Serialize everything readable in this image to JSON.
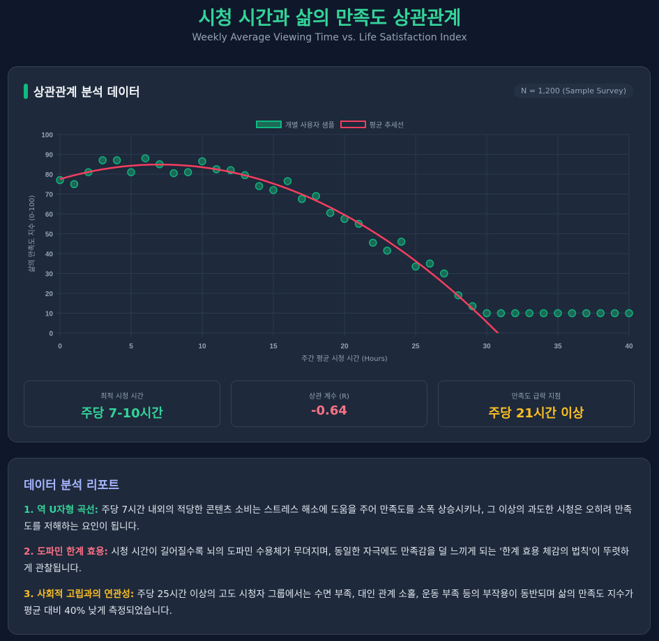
{
  "header": {
    "title": "시청 시간과 삶의 만족도 상관관계",
    "subtitle": "Weekly Average Viewing Time vs. Life Satisfaction Index"
  },
  "chart_card": {
    "title": "상관관계 분석 데이터",
    "sample_badge": "N = 1,200 (Sample Survey)"
  },
  "chart_data": {
    "type": "scatter",
    "title": "상관관계 분석 데이터",
    "xlabel": "주간 평균 시청 시간 (Hours)",
    "ylabel": "삶의 만족도 지수 (0-100)",
    "xlim": [
      0,
      40
    ],
    "ylim": [
      0,
      100
    ],
    "x_ticks": [
      0,
      5,
      10,
      15,
      20,
      25,
      30,
      35,
      40
    ],
    "y_ticks": [
      0,
      10,
      20,
      30,
      40,
      50,
      60,
      70,
      80,
      90,
      100
    ],
    "grid": true,
    "legend_position": "top",
    "legend": [
      "개별 사용자 샘플",
      "평균 추세선"
    ],
    "series": [
      {
        "name": "개별 사용자 샘플",
        "type": "scatter",
        "color": "#10b981",
        "x": [
          0,
          1,
          2,
          3,
          4,
          5,
          6,
          7,
          8,
          9,
          10,
          11,
          12,
          13,
          14,
          15,
          16,
          17,
          18,
          19,
          20,
          21,
          22,
          23,
          24,
          25,
          26,
          27,
          28,
          29,
          30,
          31,
          32,
          33,
          34,
          35,
          36,
          37,
          38,
          39,
          40
        ],
        "y": [
          77,
          75,
          81,
          87,
          87,
          81,
          88,
          85,
          80.5,
          81,
          86.5,
          82.5,
          82,
          79.5,
          74,
          72,
          76.5,
          67.5,
          69,
          60.5,
          57.5,
          55,
          45.5,
          41.5,
          46,
          33.5,
          35,
          30,
          19,
          13.5,
          10,
          10,
          10,
          10,
          10,
          10,
          10,
          10,
          10,
          10,
          10
        ]
      },
      {
        "name": "평균 추세선",
        "type": "line",
        "color": "#f43f5e",
        "equation": "y = 77.5 + 2.1x - 0.15x^2",
        "x": [
          0,
          2,
          4,
          6,
          8,
          10,
          12,
          14,
          16,
          18,
          20,
          22,
          24,
          26,
          28,
          30,
          30.9
        ],
        "y": [
          77.5,
          81.1,
          83.5,
          84.7,
          84.7,
          83.5,
          81.1,
          77.5,
          72.7,
          66.7,
          59.5,
          51.1,
          41.5,
          30.7,
          18.7,
          5.5,
          0
        ]
      }
    ]
  },
  "stats": [
    {
      "label": "최적 시청 시간",
      "value": "주당 7-10시간",
      "color": "#34d399"
    },
    {
      "label": "상관 계수 (R)",
      "value": "-0.64",
      "color": "#fb7185"
    },
    {
      "label": "만족도 급락 지점",
      "value": "주당 21시간 이상",
      "color": "#fbbf24"
    }
  ],
  "report": {
    "title": "데이터 분석 리포트",
    "items": [
      {
        "lead": "1. 역 U자형 곡선:",
        "color": "#34d399",
        "text": " 주당 7시간 내외의 적당한 콘텐츠 소비는 스트레스 해소에 도움을 주어 만족도를 소폭 상승시키나, 그 이상의 과도한 시청은 오히려 만족도를 저해하는 요인이 됩니다."
      },
      {
        "lead": "2. 도파민 한계 효용:",
        "color": "#fb7185",
        "text": " 시청 시간이 길어질수록 뇌의 도파민 수용체가 무뎌지며, 동일한 자극에도 만족감을 덜 느끼게 되는 '한계 효용 체감의 법칙'이 뚜렷하게 관찰됩니다."
      },
      {
        "lead": "3. 사회적 고립과의 연관성:",
        "color": "#fbbf24",
        "text": " 주당 25시간 이상의 고도 시청자 그룹에서는 수면 부족, 대인 관계 소홀, 운동 부족 등의 부작용이 동반되며 삶의 만족도 지수가 평균 대비 40% 낮게 측정되었습니다."
      }
    ]
  }
}
